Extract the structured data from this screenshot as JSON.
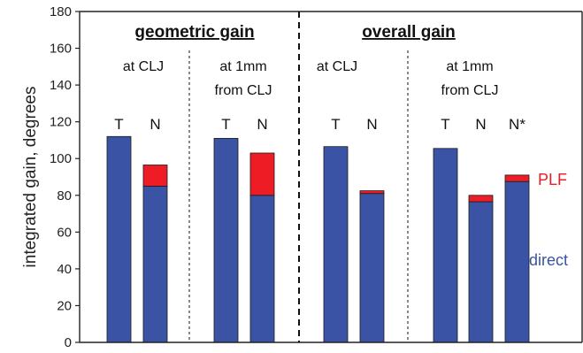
{
  "chart_data": {
    "type": "bar",
    "stacked": true,
    "ylabel": "integrated gain, degrees",
    "ylim": [
      0,
      180
    ],
    "yticks": [
      0,
      20,
      40,
      60,
      80,
      100,
      120,
      140,
      160,
      180
    ],
    "grid": false,
    "legend_placement": "right",
    "colors": {
      "direct": "#3a53a4",
      "plf": "#ee1c25",
      "axis": "#222222"
    },
    "sections": [
      {
        "title": "geometric gain",
        "groups": [
          0,
          1
        ]
      },
      {
        "title": "overall gain",
        "groups": [
          2,
          3
        ]
      }
    ],
    "groups": [
      {
        "line1": "at CLJ",
        "line2": ""
      },
      {
        "line1": "at 1mm",
        "line2": "from CLJ"
      },
      {
        "line1": "at CLJ",
        "line2": ""
      },
      {
        "line1": "at 1mm",
        "line2": "from CLJ"
      }
    ],
    "bars": [
      {
        "label": "T",
        "group": 0,
        "direct": 112,
        "plf": 0
      },
      {
        "label": "N",
        "group": 0,
        "direct": 85,
        "plf": 11.5
      },
      {
        "label": "T",
        "group": 1,
        "direct": 111,
        "plf": 0
      },
      {
        "label": "N",
        "group": 1,
        "direct": 80,
        "plf": 23
      },
      {
        "label": "T",
        "group": 2,
        "direct": 106.5,
        "plf": 0
      },
      {
        "label": "N",
        "group": 2,
        "direct": 81,
        "plf": 1.5
      },
      {
        "label": "T",
        "group": 3,
        "direct": 105.5,
        "plf": 0
      },
      {
        "label": "N",
        "group": 3,
        "direct": 76.5,
        "plf": 3.5
      },
      {
        "label": "N*",
        "group": 3,
        "direct": 87.5,
        "plf": 3.5
      }
    ],
    "series": [
      {
        "name": "direct",
        "key": "direct"
      },
      {
        "name": "PLF",
        "key": "plf"
      }
    ]
  }
}
